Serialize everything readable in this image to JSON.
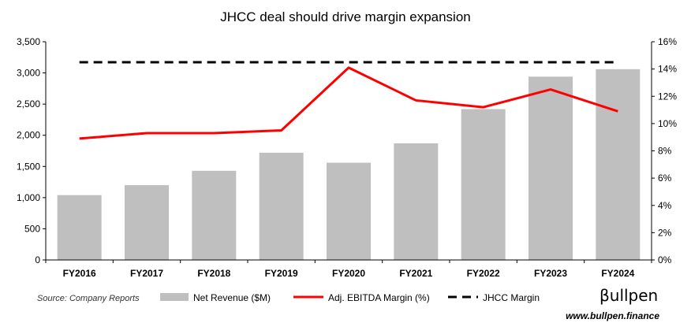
{
  "chart_data": {
    "type": "bar",
    "title": "JHCC deal should drive margin expansion",
    "categories": [
      "FY2016",
      "FY2017",
      "FY2018",
      "FY2019",
      "FY2020",
      "FY2021",
      "FY2022",
      "FY2023",
      "FY2024"
    ],
    "series": [
      {
        "name": "Net Revenue ($M)",
        "type": "bar",
        "axis": "left",
        "color": "#bfbfbf",
        "values": [
          1040,
          1200,
          1430,
          1720,
          1560,
          1870,
          2420,
          2940,
          3060
        ]
      },
      {
        "name": "Adj. EBITDA Margin (%)",
        "type": "line",
        "axis": "right",
        "color": "#ff0000",
        "values": [
          8.9,
          9.3,
          9.3,
          9.5,
          14.1,
          11.7,
          11.2,
          12.5,
          10.9
        ]
      },
      {
        "name": "JHCC Margin",
        "type": "line",
        "style": "dashed",
        "axis": "right",
        "color": "#000000",
        "values": [
          14.5,
          14.5,
          14.5,
          14.5,
          14.5,
          14.5,
          14.5,
          14.5,
          14.5
        ]
      }
    ],
    "y_left": {
      "ylim": [
        0,
        3500
      ],
      "ticks": [
        0,
        500,
        1000,
        1500,
        2000,
        2500,
        3000,
        3500
      ],
      "tick_labels": [
        "0",
        "500",
        "1,000",
        "1,500",
        "2,000",
        "2,500",
        "3,000",
        "3,500"
      ]
    },
    "y_right": {
      "ylim": [
        0,
        16
      ],
      "ticks": [
        0,
        2,
        4,
        6,
        8,
        10,
        12,
        14,
        16
      ],
      "tick_labels": [
        "0%",
        "2%",
        "4%",
        "6%",
        "8%",
        "10%",
        "12%",
        "14%",
        "16%"
      ]
    },
    "grid": false,
    "legend_position": "bottom"
  },
  "footer": {
    "source": "Source: Company Reports",
    "brand": "βullpen",
    "url": "www.bullpen.finance"
  }
}
